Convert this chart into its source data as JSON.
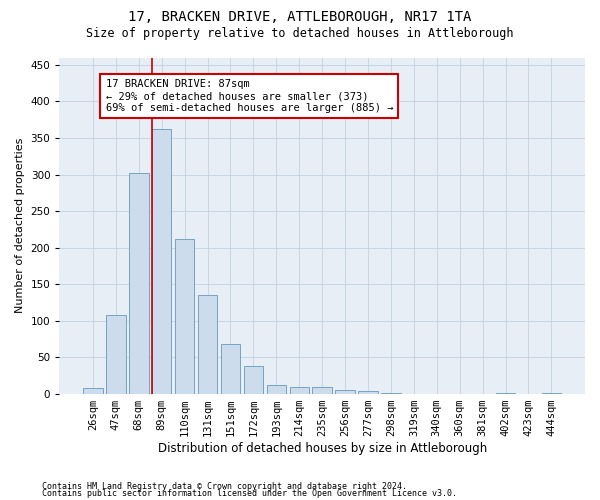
{
  "title": "17, BRACKEN DRIVE, ATTLEBOROUGH, NR17 1TA",
  "subtitle": "Size of property relative to detached houses in Attleborough",
  "xlabel": "Distribution of detached houses by size in Attleborough",
  "ylabel": "Number of detached properties",
  "footnote1": "Contains HM Land Registry data © Crown copyright and database right 2024.",
  "footnote2": "Contains public sector information licensed under the Open Government Licence v3.0.",
  "bar_labels": [
    "26sqm",
    "47sqm",
    "68sqm",
    "89sqm",
    "110sqm",
    "131sqm",
    "151sqm",
    "172sqm",
    "193sqm",
    "214sqm",
    "235sqm",
    "256sqm",
    "277sqm",
    "298sqm",
    "319sqm",
    "340sqm",
    "360sqm",
    "381sqm",
    "402sqm",
    "423sqm",
    "444sqm"
  ],
  "bar_values": [
    8,
    108,
    302,
    362,
    212,
    136,
    68,
    38,
    13,
    10,
    9,
    6,
    4,
    2,
    0,
    0,
    0,
    0,
    2,
    0,
    2
  ],
  "bar_color": "#ccdced",
  "bar_edge_color": "#6699bb",
  "highlight_bin": 3,
  "highlight_line_color": "#cc0000",
  "annotation_line1": "17 BRACKEN DRIVE: 87sqm",
  "annotation_line2": "← 29% of detached houses are smaller (373)",
  "annotation_line3": "69% of semi-detached houses are larger (885) →",
  "ylim": [
    0,
    460
  ],
  "yticks": [
    0,
    50,
    100,
    150,
    200,
    250,
    300,
    350,
    400,
    450
  ],
  "grid_color": "#bbccdd",
  "background_color": "#e8eef5",
  "title_fontsize": 10,
  "subtitle_fontsize": 8.5,
  "ylabel_fontsize": 8,
  "xlabel_fontsize": 8.5,
  "tick_fontsize": 7.5,
  "annot_fontsize": 7.5,
  "footnote_fontsize": 6
}
